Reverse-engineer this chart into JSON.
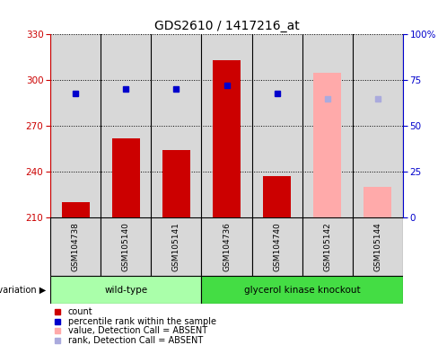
{
  "title": "GDS2610 / 1417216_at",
  "samples": [
    "GSM104738",
    "GSM105140",
    "GSM105141",
    "GSM104736",
    "GSM104740",
    "GSM105142",
    "GSM105144"
  ],
  "bar_values": [
    220,
    262,
    254,
    313,
    237,
    null,
    null
  ],
  "bar_absent_values": [
    null,
    null,
    null,
    null,
    null,
    305,
    230
  ],
  "rank_values": [
    68,
    70,
    70,
    72,
    68,
    null,
    null
  ],
  "rank_absent_values": [
    null,
    null,
    null,
    null,
    null,
    65,
    65
  ],
  "ylim_left": [
    210,
    330
  ],
  "ylim_right": [
    0,
    100
  ],
  "yticks_left": [
    210,
    240,
    270,
    300,
    330
  ],
  "yticks_right": [
    0,
    25,
    50,
    75,
    100
  ],
  "yticklabels_right": [
    "0",
    "25",
    "50",
    "75",
    "100%"
  ],
  "group1_label": "wild-type",
  "group2_label": "glycerol kinase knockout",
  "group1_color": "#aaffaa",
  "group2_color": "#44dd44",
  "background_color": "#d8d8d8",
  "bar_color": "#cc0000",
  "absent_bar_color": "#ffaaaa",
  "rank_color": "#0000cc",
  "absent_rank_color": "#aaaadd",
  "legend_items": [
    {
      "color": "#cc0000",
      "label": "count"
    },
    {
      "color": "#0000cc",
      "label": "percentile rank within the sample"
    },
    {
      "color": "#ffaaaa",
      "label": "value, Detection Call = ABSENT"
    },
    {
      "color": "#aaaadd",
      "label": "rank, Detection Call = ABSENT"
    }
  ]
}
